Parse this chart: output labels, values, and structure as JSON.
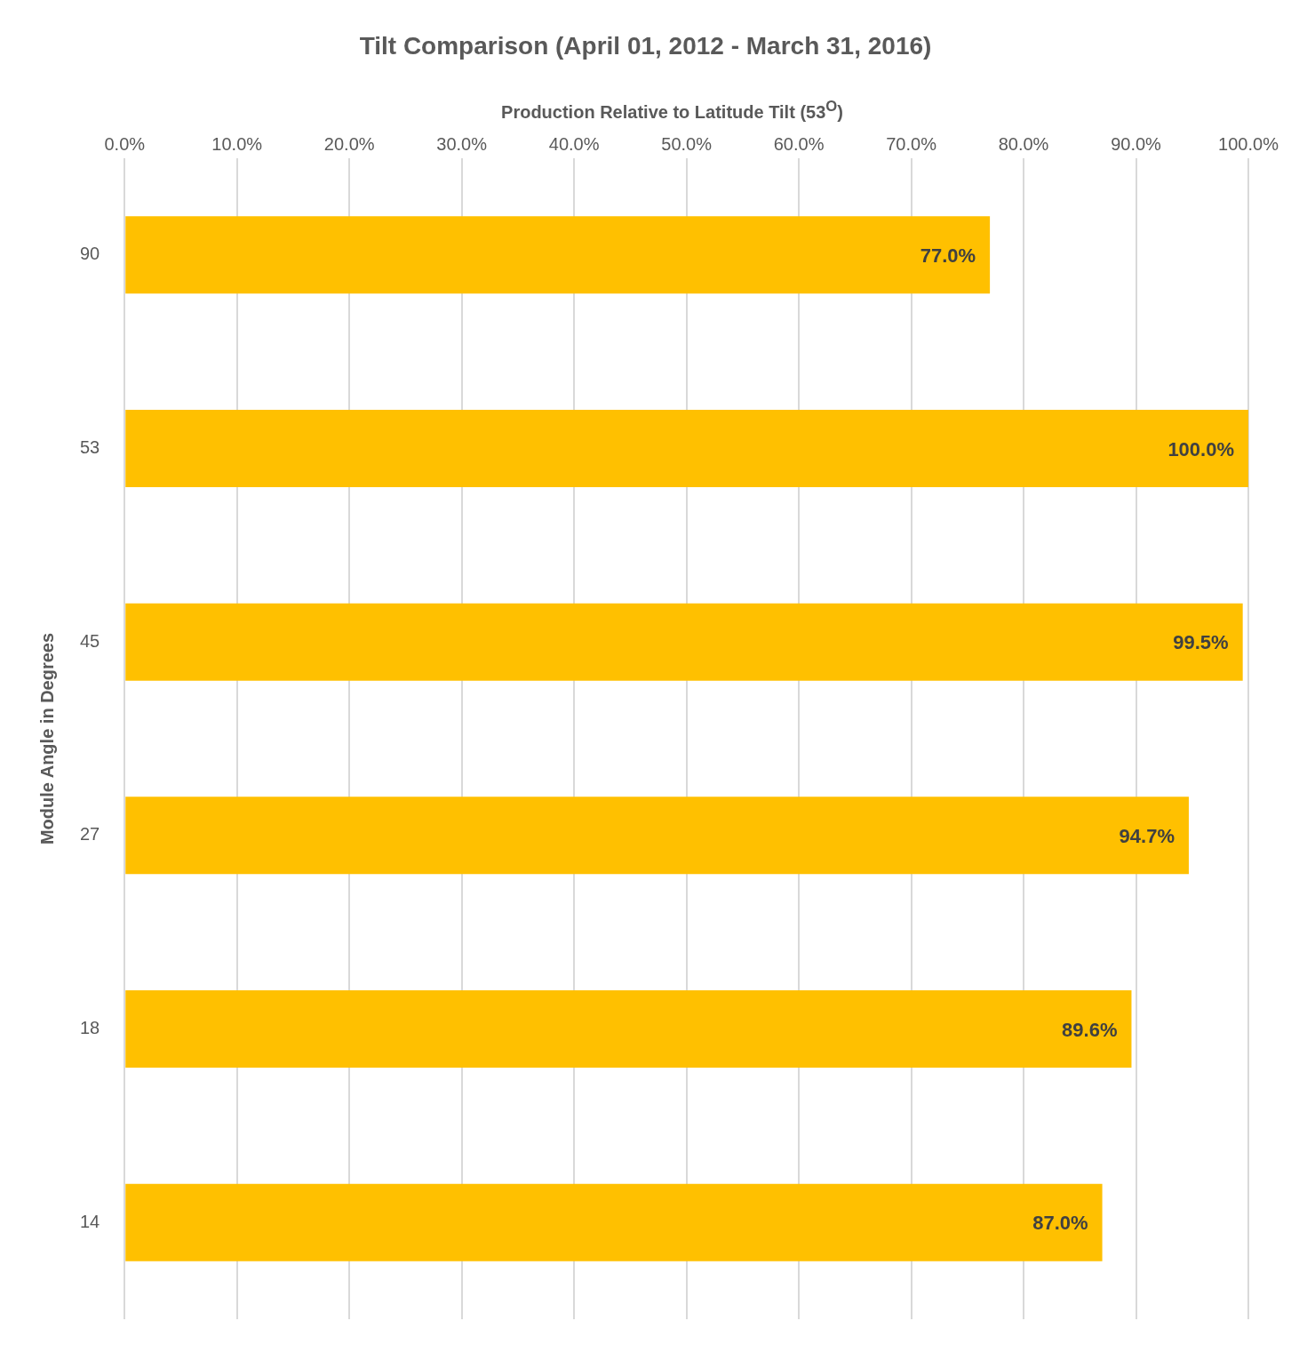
{
  "chart_data": {
    "type": "bar",
    "orientation": "horizontal",
    "title": "Tilt Comparison (April 01, 2012 - March 31, 2016)",
    "xlabel": "Production Relative to Latitude Tilt (53$^{O}$)",
    "ylabel": "Module Angle in Degrees",
    "categories": [
      "90",
      "53",
      "45",
      "27",
      "18",
      "14"
    ],
    "values": [
      77.0,
      100.0,
      99.5,
      94.7,
      89.6,
      87.0
    ],
    "value_labels": [
      "77.0%",
      "100.0%",
      "99.5%",
      "94.7%",
      "89.6%",
      "87.0%"
    ],
    "color": "#ffc000",
    "xlim": [
      0,
      100
    ],
    "xticks": [
      {
        "value": 0,
        "label": "0.0%"
      },
      {
        "value": 10,
        "label": "10.0%"
      },
      {
        "value": 20,
        "label": "20.0%"
      },
      {
        "value": 30,
        "label": "30.0%"
      },
      {
        "value": 40,
        "label": "40.0%"
      },
      {
        "value": 50,
        "label": "50.0%"
      },
      {
        "value": 60,
        "label": "60.0%"
      },
      {
        "value": 70,
        "label": "70.0%"
      },
      {
        "value": 80,
        "label": "80.0%"
      },
      {
        "value": 90,
        "label": "90.0%"
      },
      {
        "value": 100,
        "label": "100.0%"
      }
    ],
    "grid": "x",
    "legend": false
  }
}
